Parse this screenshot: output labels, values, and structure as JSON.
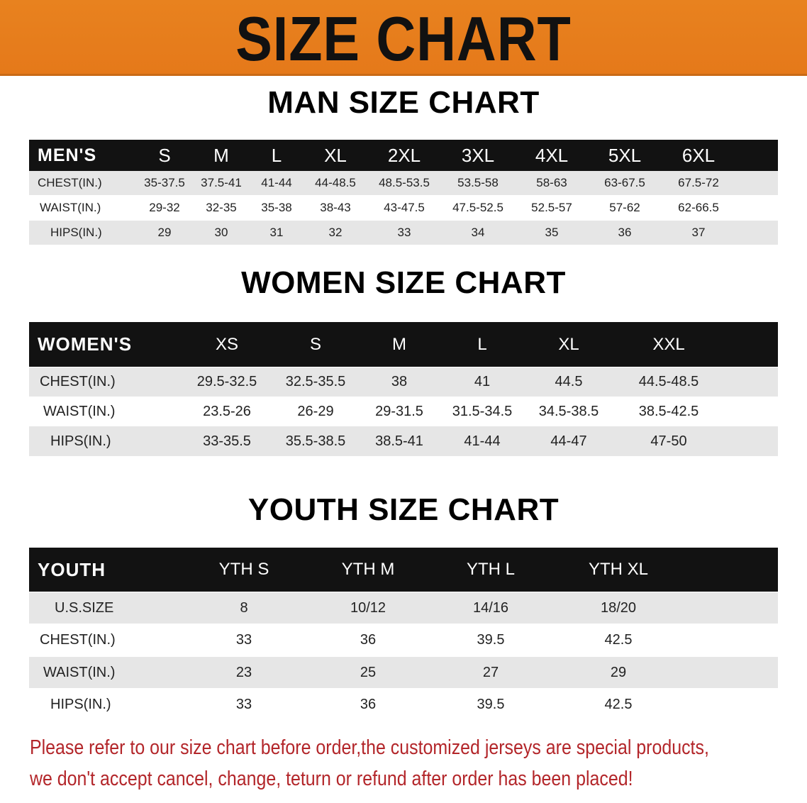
{
  "banner": {
    "title": "SIZE CHART",
    "color": "#e67e1c"
  },
  "men": {
    "title": "MAN SIZE CHART",
    "header": "MEN'S",
    "sizes": [
      "S",
      "M",
      "L",
      "XL",
      "2XL",
      "3XL",
      "4XL",
      "5XL",
      "6XL"
    ],
    "rows": [
      {
        "label": "CHEST(IN.)",
        "values": [
          "35-37.5",
          "37.5-41",
          "41-44",
          "44-48.5",
          "48.5-53.5",
          "53.5-58",
          "58-63",
          "63-67.5",
          "67.5-72"
        ]
      },
      {
        "label": "WAIST(IN.)",
        "values": [
          "29-32",
          "32-35",
          "35-38",
          "38-43",
          "43-47.5",
          "47.5-52.5",
          "52.5-57",
          "57-62",
          "62-66.5"
        ]
      },
      {
        "label": "HIPS(IN.)",
        "values": [
          "29",
          "30",
          "31",
          "32",
          "33",
          "34",
          "35",
          "36",
          "37"
        ]
      }
    ]
  },
  "women": {
    "title": "WOMEN SIZE CHART",
    "header": "WOMEN'S",
    "sizes": [
      "XS",
      "S",
      "M",
      "L",
      "XL",
      "XXL"
    ],
    "rows": [
      {
        "label": "CHEST(IN.)",
        "values": [
          "29.5-32.5",
          "32.5-35.5",
          "38",
          "41",
          "44.5",
          "44.5-48.5"
        ]
      },
      {
        "label": "WAIST(IN.)",
        "values": [
          "23.5-26",
          "26-29",
          "29-31.5",
          "31.5-34.5",
          "34.5-38.5",
          "38.5-42.5"
        ]
      },
      {
        "label": "HIPS(IN.)",
        "values": [
          "33-35.5",
          "35.5-38.5",
          "38.5-41",
          "41-44",
          "44-47",
          "47-50"
        ]
      }
    ]
  },
  "youth": {
    "title": "YOUTH SIZE CHART",
    "header": "YOUTH",
    "sizes": [
      "YTH S",
      "YTH M",
      "YTH L",
      "YTH XL"
    ],
    "rows": [
      {
        "label": "U.S.SIZE",
        "values": [
          "8",
          "10/12",
          "14/16",
          "18/20"
        ]
      },
      {
        "label": "CHEST(IN.)",
        "values": [
          "33",
          "36",
          "39.5",
          "42.5"
        ]
      },
      {
        "label": "WAIST(IN.)",
        "values": [
          "23",
          "25",
          "27",
          "29"
        ]
      },
      {
        "label": "HIPS(IN.)",
        "values": [
          "33",
          "36",
          "39.5",
          "42.5"
        ]
      }
    ]
  },
  "footer": {
    "line1": "Please refer to our size chart before order,the customized jerseys are special products,",
    "line2": "we don't accept cancel, change, teturn or refund after order has been placed!",
    "color": "#b3262a"
  }
}
